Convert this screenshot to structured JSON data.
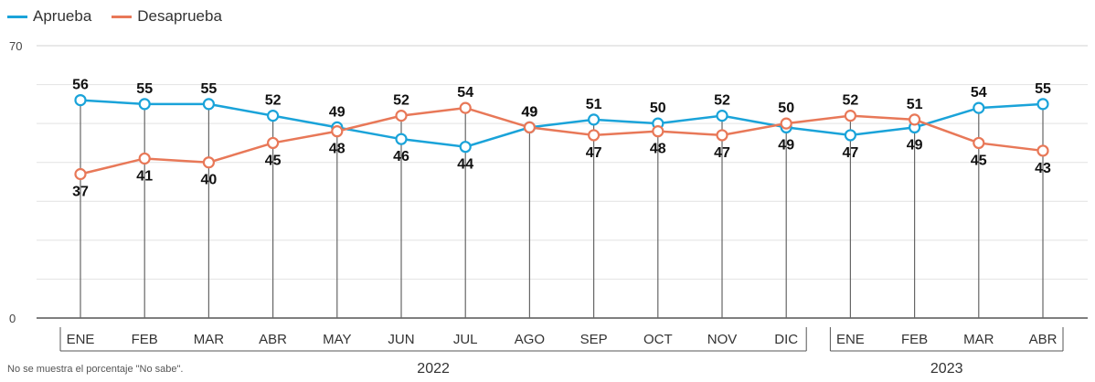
{
  "legend": {
    "items": [
      {
        "label": "Aprueba",
        "color": "#1aa3d9"
      },
      {
        "label": "Desaprueba",
        "color": "#e87858"
      }
    ]
  },
  "note": "No se muestra el porcentaje \"No sabe\".",
  "chart_data": {
    "type": "line",
    "categories": [
      "ENE",
      "FEB",
      "MAR",
      "ABR",
      "MAY",
      "JUN",
      "JUL",
      "AGO",
      "SEP",
      "OCT",
      "NOV",
      "DIC",
      "ENE",
      "FEB",
      "MAR",
      "ABR"
    ],
    "year_groups": [
      {
        "label": "2022",
        "from": 0,
        "to": 11
      },
      {
        "label": "2023",
        "from": 12,
        "to": 15
      }
    ],
    "series": [
      {
        "name": "Aprueba",
        "color": "#1aa3d9",
        "values": [
          56,
          55,
          55,
          52,
          49,
          46,
          44,
          49,
          51,
          50,
          52,
          49,
          47,
          49,
          54,
          55
        ]
      },
      {
        "name": "Desaprueba",
        "color": "#e87858",
        "values": [
          37,
          41,
          40,
          45,
          48,
          52,
          54,
          49,
          47,
          48,
          47,
          50,
          52,
          51,
          45,
          43
        ]
      }
    ],
    "ylim": [
      0,
      70
    ],
    "yticks": [
      0,
      70
    ],
    "grid": true,
    "legend_position": "top-left"
  }
}
